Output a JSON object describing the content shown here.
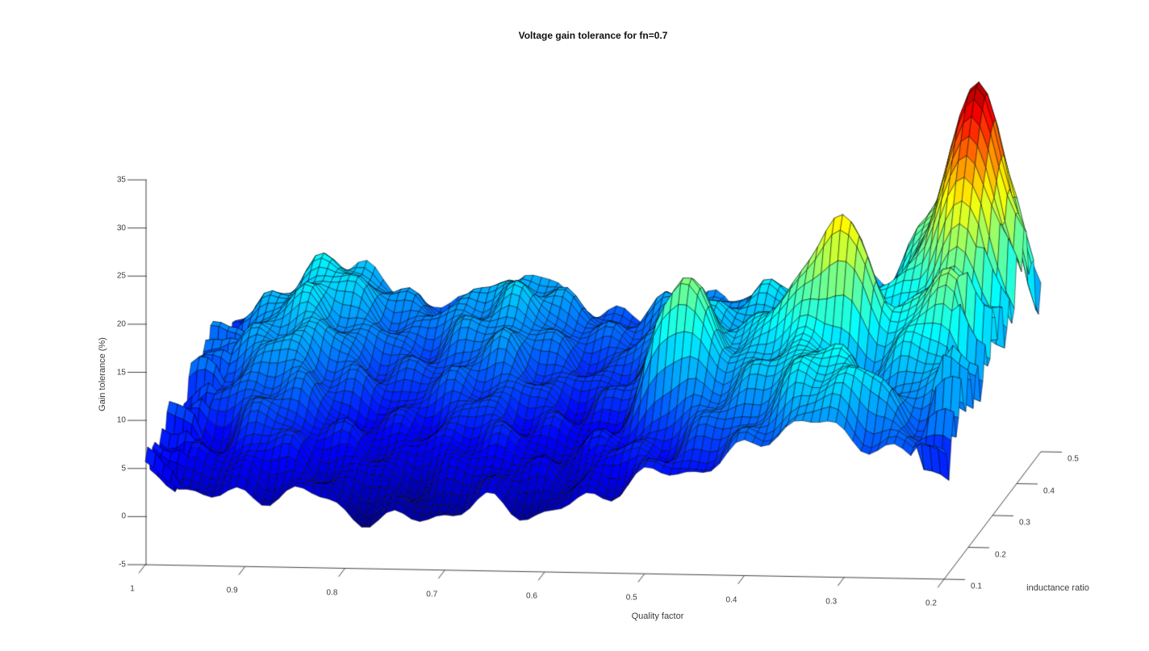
{
  "title": "Voltage gain tolerance for fn=0.7",
  "background": "#ffffff",
  "axis_color": "#444444",
  "tick_text_color": "#3c3c3c",
  "chart_data": {
    "type": "surface",
    "title": "Voltage gain tolerance for fn=0.7",
    "xlabel": "Quality factor",
    "ylabel": "inductance ratio",
    "zlabel": "Gain tolerance (%)",
    "x_axis_reversed": true,
    "x_range": [
      1,
      0.2
    ],
    "y_range": [
      0.1,
      0.5
    ],
    "z_range": [
      -5,
      35
    ],
    "x_ticks": [
      1,
      0.9,
      0.8,
      0.7,
      0.6,
      0.5,
      0.4,
      0.3,
      0.2
    ],
    "y_ticks": [
      0.1,
      0.2,
      0.3,
      0.4,
      0.5
    ],
    "z_ticks": [
      -5,
      0,
      5,
      10,
      15,
      20,
      25,
      30,
      35
    ],
    "grid_on": false,
    "legend": null,
    "colormap": "jet",
    "colormap_stops": [
      "#000080",
      "#0000ff",
      "#00ffff",
      "#ffff00",
      "#ff0000",
      "#800000"
    ],
    "colormap_positions": [
      0,
      0.16,
      0.45,
      0.7,
      0.9,
      1
    ],
    "clim": [
      -1,
      36
    ],
    "mesh_line_color": "#000000",
    "grid_qf": [
      1.0,
      0.95,
      0.9,
      0.85,
      0.8,
      0.75,
      0.7,
      0.65,
      0.6,
      0.55,
      0.5,
      0.45,
      0.4,
      0.35,
      0.3,
      0.25,
      0.2
    ],
    "grid_ir": [
      0.1,
      0.15,
      0.2,
      0.25,
      0.3,
      0.35,
      0.4,
      0.45,
      0.5
    ],
    "z_grid": [
      [
        4,
        3,
        2,
        3,
        1,
        0,
        1,
        2,
        1,
        3,
        5,
        6,
        8,
        11,
        10,
        8,
        7
      ],
      [
        6,
        4,
        6,
        4,
        3,
        2,
        3,
        4,
        3,
        5,
        6,
        8,
        10,
        14,
        15,
        10,
        9
      ],
      [
        7,
        5,
        8,
        6,
        5,
        4,
        6,
        5,
        4,
        6,
        8,
        11,
        13,
        16,
        12,
        11,
        13
      ],
      [
        6,
        8,
        10,
        7,
        5,
        6,
        7,
        6,
        5,
        7,
        21,
        12,
        15,
        14,
        12,
        16,
        10
      ],
      [
        8,
        10,
        12,
        9,
        7,
        8,
        9,
        7,
        6,
        9,
        15,
        14,
        18,
        26,
        16,
        20,
        15
      ],
      [
        9,
        11,
        13,
        10,
        8,
        9,
        11,
        8,
        7,
        10,
        14,
        12,
        18,
        16,
        14,
        19,
        12
      ],
      [
        8,
        12,
        14,
        11,
        9,
        11,
        12,
        9,
        8,
        11,
        12,
        14,
        13,
        15,
        18,
        29,
        16
      ],
      [
        7,
        11,
        15,
        12,
        10,
        12,
        13,
        10,
        9,
        12,
        11,
        13,
        14,
        13,
        20,
        35,
        18
      ],
      [
        6,
        9,
        13,
        11,
        9,
        10,
        12,
        9,
        8,
        10,
        10,
        11,
        14,
        12,
        22,
        26,
        10
      ]
    ]
  }
}
